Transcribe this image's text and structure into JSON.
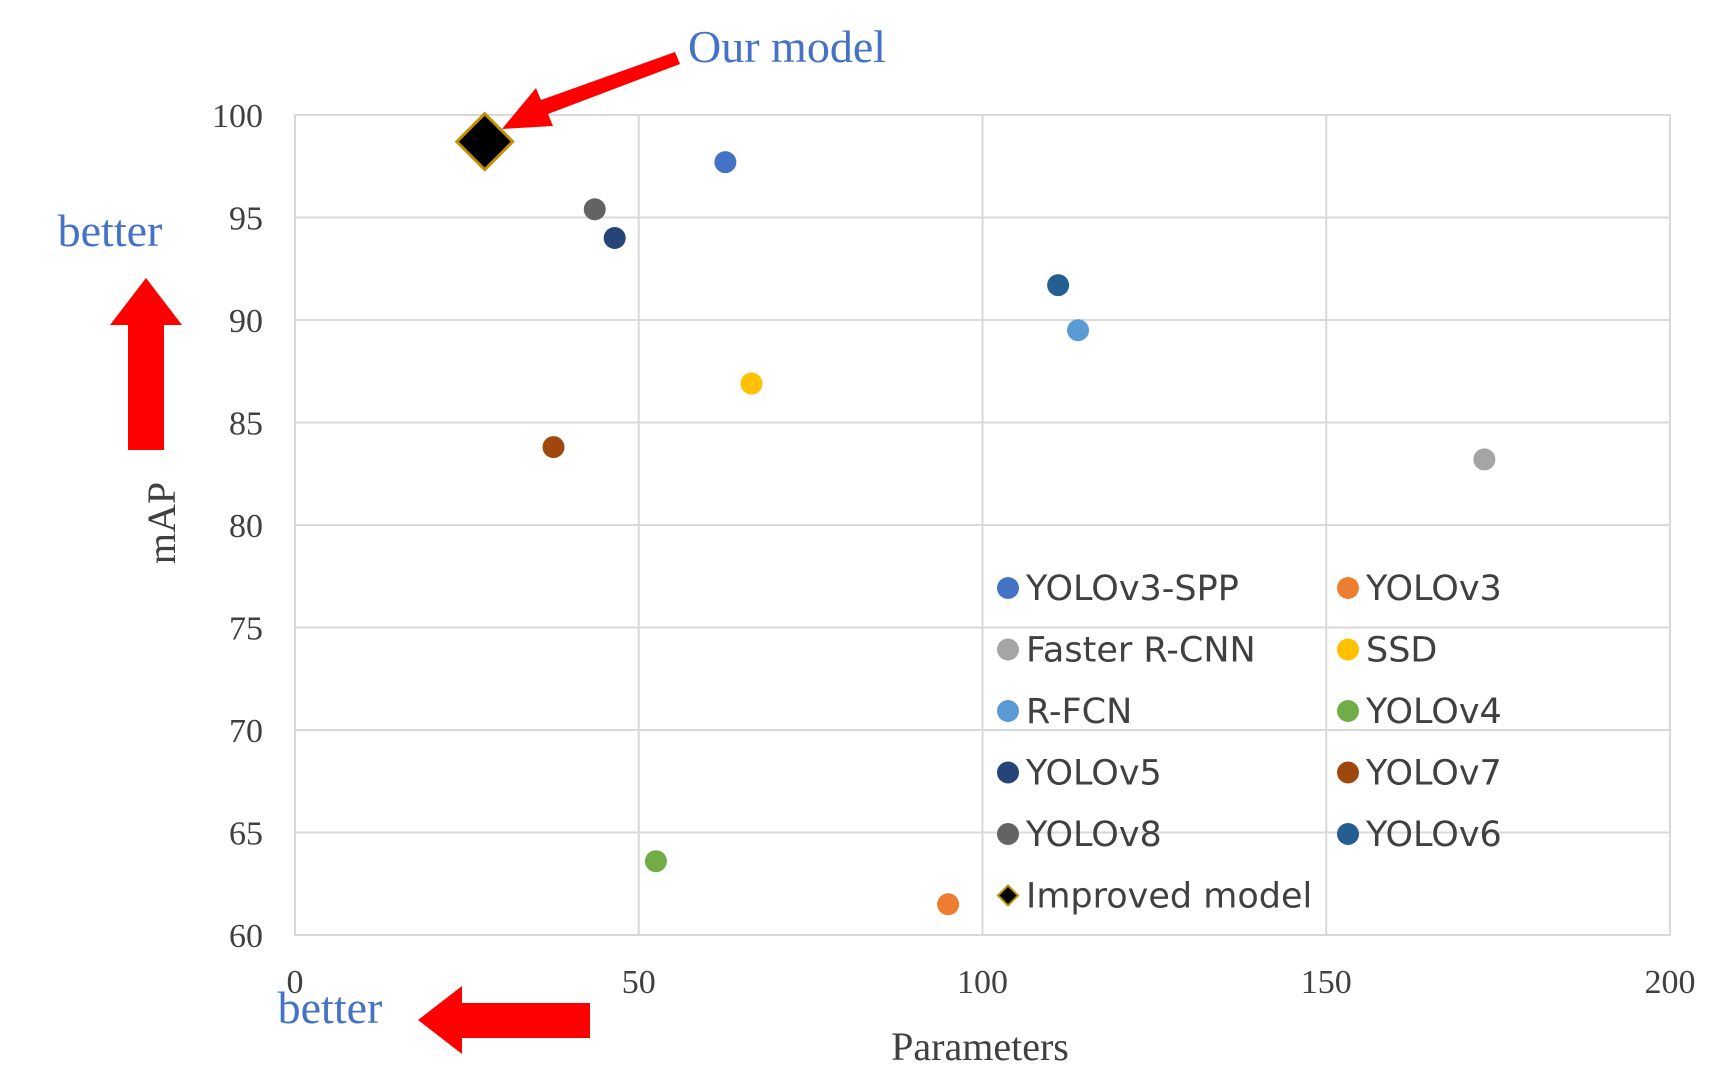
{
  "chart_data": {
    "type": "scatter",
    "xlabel": "Parameters",
    "ylabel": "mAP",
    "xlim": [
      0,
      200
    ],
    "ylim": [
      60,
      100
    ],
    "xticks": [
      "0",
      "50",
      "100",
      "150",
      "200"
    ],
    "yticks": [
      "60",
      "65",
      "70",
      "75",
      "80",
      "85",
      "90",
      "95",
      "100"
    ],
    "grid": true,
    "legend_position": "bottom-right inside plot",
    "series": [
      {
        "name": "YOLOv3-SPP",
        "x": 62.6,
        "y": 97.7,
        "color": "#4472C4",
        "marker": "circle"
      },
      {
        "name": "YOLOv3",
        "x": 95.0,
        "y": 61.5,
        "color": "#ED7D31",
        "marker": "circle"
      },
      {
        "name": "Faster R-CNN",
        "x": 173.0,
        "y": 83.2,
        "color": "#A5A5A5",
        "marker": "circle"
      },
      {
        "name": "SSD",
        "x": 66.4,
        "y": 86.9,
        "color": "#FFC000",
        "marker": "circle"
      },
      {
        "name": "R-FCN",
        "x": 113.9,
        "y": 89.5,
        "color": "#5B9BD5",
        "marker": "circle"
      },
      {
        "name": "YOLOv4",
        "x": 52.5,
        "y": 63.6,
        "color": "#70AD47",
        "marker": "circle"
      },
      {
        "name": "YOLOv5",
        "x": 46.5,
        "y": 94.0,
        "color": "#264478",
        "marker": "circle"
      },
      {
        "name": "YOLOv7",
        "x": 37.6,
        "y": 83.8,
        "color": "#9E480E",
        "marker": "circle"
      },
      {
        "name": "YOLOv8",
        "x": 43.6,
        "y": 95.4,
        "color": "#636363",
        "marker": "circle"
      },
      {
        "name": "YOLOv6",
        "x": 111.0,
        "y": 91.7,
        "color": "#255E91",
        "marker": "circle"
      },
      {
        "name": "Improved model",
        "x": 27.6,
        "y": 98.7,
        "color": "#000000",
        "edge_color": "#BF9000",
        "marker": "diamond"
      }
    ],
    "annotations": {
      "our_model": "Our model",
      "better_y": "better",
      "better_x": "better"
    },
    "annotation_colors": {
      "text": "#4472C4",
      "arrow": "#FF0000"
    }
  }
}
